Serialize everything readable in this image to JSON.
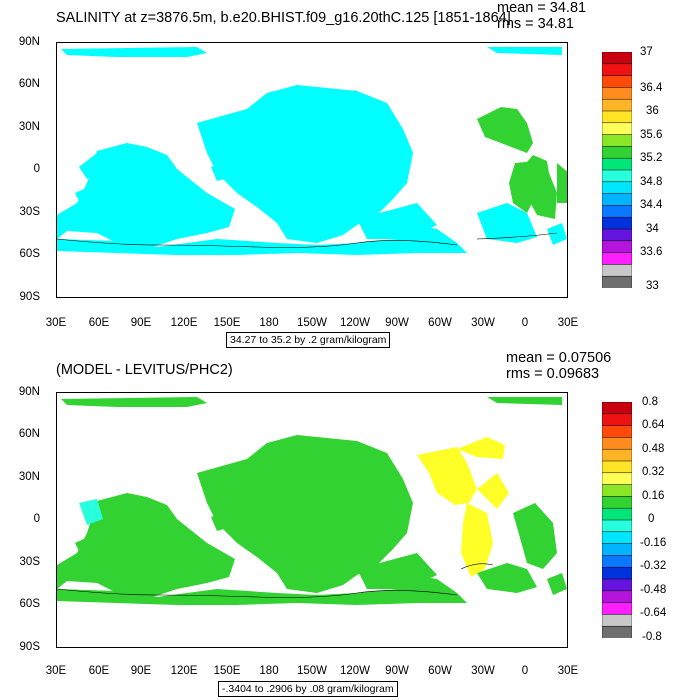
{
  "panels": [
    {
      "title": "SALINITY at z=3876.5m, b.e20.BHIST.f09_g16.20thC.125 [1851-1864]",
      "mean": "mean = 34.81",
      "rms": "rms = 34.81",
      "info": "34.27 to 35.2 by .2 gram/kilogram",
      "colorbar": {
        "labels": [
          "37",
          "36.4",
          "36",
          "35.6",
          "35.2",
          "34.8",
          "34.4",
          "34",
          "33.6",
          "33"
        ],
        "colors": [
          "#c8000f",
          "#ee1212",
          "#ff4a0a",
          "#ff8c1e",
          "#ffb428",
          "#ffe428",
          "#ffff5a",
          "#8ce628",
          "#32d232",
          "#00e678",
          "#28ffdc",
          "#00e6ff",
          "#00b4ff",
          "#0a78ff",
          "#0032dc",
          "#6414dc",
          "#b414dc",
          "#ff1eff",
          "#c8c8c8",
          "#6e6e6e"
        ]
      },
      "fill_color": "#00ffff",
      "accent_fill": "#32d232"
    },
    {
      "title": "(MODEL - LEVITUS/PHC2)",
      "mean": "mean = 0.07506",
      "rms": "rms = 0.09683",
      "info": "-.3404 to .2906 by .08 gram/kilogram",
      "colorbar": {
        "labels": [
          "0.8",
          "0.64",
          "0.48",
          "0.32",
          "0.16",
          "0",
          "-0.16",
          "-0.32",
          "-0.48",
          "-0.64",
          "-0.8"
        ],
        "colors": [
          "#c8000f",
          "#ee1212",
          "#ff4a0a",
          "#ff8c1e",
          "#ffb428",
          "#ffe428",
          "#ffff5a",
          "#8ce628",
          "#32d232",
          "#00e678",
          "#28ffdc",
          "#00e6ff",
          "#00b4ff",
          "#0a78ff",
          "#0032dc",
          "#6414dc",
          "#b414dc",
          "#ff1eff",
          "#c8c8c8",
          "#6e6e6e"
        ]
      },
      "fill_color": "#32d232",
      "accent_fill": "#ffff28"
    }
  ],
  "axes": {
    "y_ticks": [
      "90N",
      "60N",
      "30N",
      "0",
      "30S",
      "60S",
      "90S"
    ],
    "x_ticks": [
      "30E",
      "60E",
      "90E",
      "120E",
      "150E",
      "180",
      "150W",
      "120W",
      "90W",
      "60W",
      "30W",
      "0",
      "30E"
    ]
  }
}
